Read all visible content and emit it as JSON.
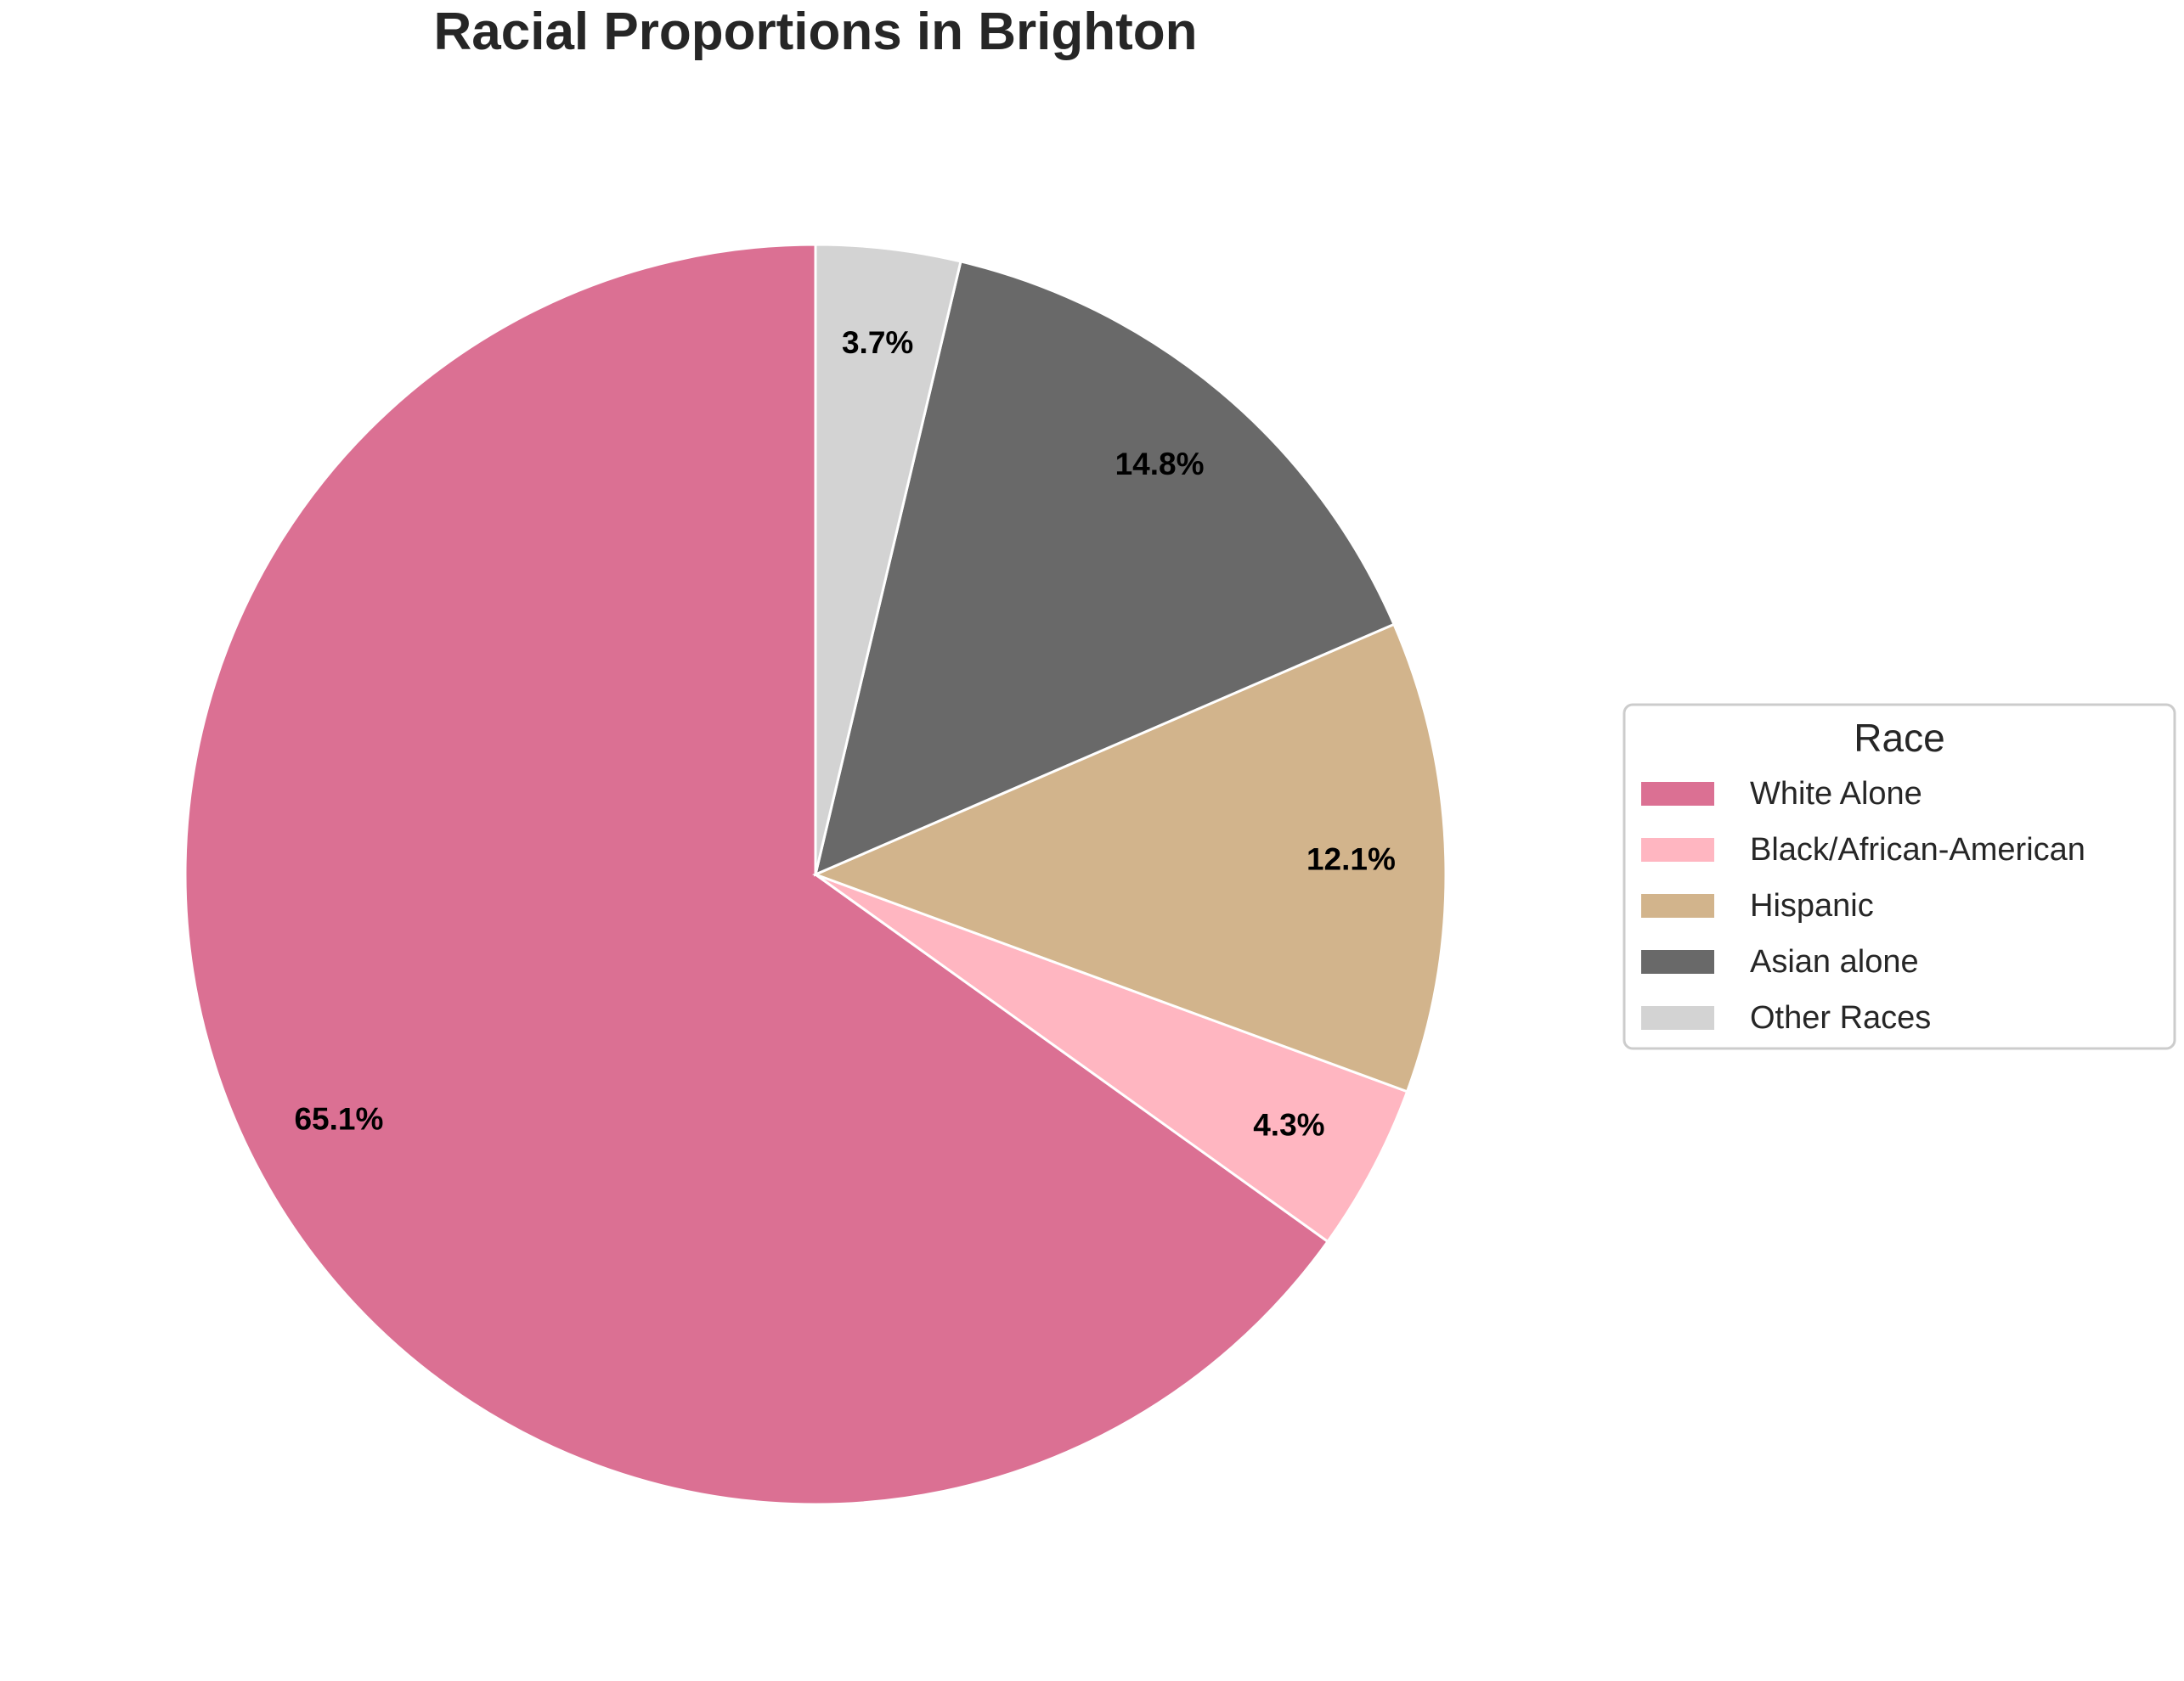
{
  "chart_data": {
    "type": "pie",
    "title": "Racial Proportions in Brighton",
    "categories": [
      "White Alone",
      "Black/African-American",
      "Hispanic",
      "Asian alone",
      "Other Races"
    ],
    "values": [
      65.1,
      4.3,
      12.1,
      14.8,
      3.7
    ],
    "value_labels": [
      "65.1%",
      "4.3%",
      "12.1%",
      "14.8%",
      "3.7%"
    ],
    "colors": [
      "#DB7093",
      "#FFB6C1",
      "#D2B48C",
      "#696969",
      "#D3D3D3"
    ],
    "start_angle": "top",
    "direction": "counterclockwise",
    "legend": {
      "title": "Race",
      "placement": "right"
    }
  }
}
